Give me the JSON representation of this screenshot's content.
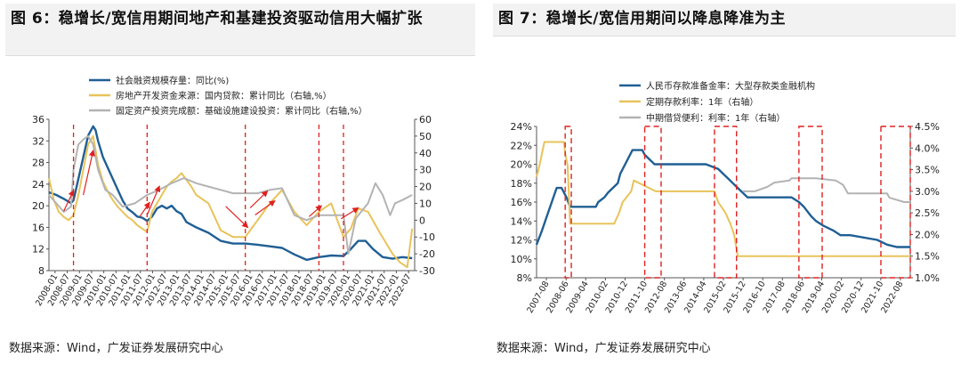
{
  "left_title": "图 6：稳增长/宽信用期间地产和基建投资驱动信用大幅扩张",
  "right_title": "图 7：稳增长/宽信用期间以降息降准为主",
  "left_source": "数据来源：Wind，广发证券发展研究中心",
  "right_source": "数据来源：Wind，广发证券发展研究中心",
  "colors": {
    "blue": "#1f5f94",
    "gold": "#e8c35a",
    "gray": "#b3b3b3",
    "red": "#e02020"
  },
  "chart_data": [
    {
      "type": "line",
      "title": "稳增长/宽信用期间地产和基建投资驱动信用大幅扩张",
      "ylim_left": [
        8,
        36
      ],
      "ylim_right": [
        -30,
        60
      ],
      "yticks_left": [
        "36",
        "32",
        "28",
        "24",
        "20",
        "16",
        "12",
        "8"
      ],
      "yticks_right": [
        "60",
        "50",
        "40",
        "30",
        "20",
        "10",
        "0",
        "-10",
        "-20",
        "-30"
      ],
      "x_tick_labels": [
        "2008-01",
        "2008-07",
        "2009-01",
        "2009-07",
        "2010-01",
        "2010-07",
        "2011-01",
        "2011-07",
        "2012-01",
        "2012-07",
        "2013-01",
        "2013-07",
        "2014-01",
        "2014-07",
        "2015-01",
        "2015-07",
        "2016-01",
        "2016-07",
        "2017-01",
        "2017-07",
        "2018-01",
        "2018-07",
        "2019-01",
        "2019-07",
        "2020-01",
        "2020-07",
        "2021-01",
        "2021-07",
        "2022-01",
        "2022-07"
      ],
      "x_range": [
        2008.0,
        2022.9
      ],
      "red_dashed_lines": [
        2009.0,
        2012.0,
        2016.0,
        2019.0,
        2020.0
      ],
      "arrows": [
        [
          2008.6,
          19.0,
          2009.0,
          22.8
        ],
        [
          2009.4,
          22.0,
          2009.8,
          30.2
        ],
        [
          2011.7,
          18.0,
          2012.1,
          20.6
        ],
        [
          2012.0,
          18.3,
          2012.5,
          23.6
        ],
        [
          2015.2,
          19.9,
          2016.1,
          16.0
        ],
        [
          2016.2,
          19.6,
          2016.9,
          22.7
        ],
        [
          2016.4,
          18.3,
          2017.2,
          20.9
        ],
        [
          2018.6,
          18.0,
          2019.1,
          20.0
        ],
        [
          2019.9,
          17.6,
          2020.6,
          19.6
        ]
      ],
      "series": [
        {
          "name": "社会融资规模存量：同比(%)",
          "axis": "left",
          "x": [
            2008.0,
            2008.3,
            2008.6,
            2008.9,
            2009.0,
            2009.2,
            2009.4,
            2009.6,
            2009.8,
            2009.9,
            2010.0,
            2010.2,
            2010.4,
            2010.6,
            2010.8,
            2011.0,
            2011.2,
            2011.4,
            2011.6,
            2011.8,
            2012.0,
            2012.2,
            2012.4,
            2012.6,
            2012.8,
            2013.0,
            2013.2,
            2013.4,
            2013.6,
            2013.8,
            2014.0,
            2014.5,
            2015.0,
            2015.5,
            2016.0,
            2016.5,
            2017.0,
            2017.5,
            2018.0,
            2018.5,
            2019.0,
            2019.5,
            2020.0,
            2020.3,
            2020.6,
            2020.9,
            2021.2,
            2021.6,
            2022.0,
            2022.4,
            2022.8
          ],
          "values": [
            22.5,
            22.0,
            21.3,
            20.5,
            21.0,
            25.0,
            29.0,
            33.0,
            34.7,
            34.0,
            32.0,
            29.0,
            27.0,
            25.0,
            23.0,
            21.0,
            19.5,
            18.8,
            18.0,
            17.8,
            17.2,
            18.0,
            19.5,
            20.0,
            19.5,
            20.0,
            19.0,
            18.5,
            17.0,
            16.5,
            16.0,
            15.0,
            13.5,
            13.0,
            13.0,
            12.8,
            12.5,
            12.2,
            11.0,
            10.0,
            10.5,
            10.8,
            10.7,
            12.0,
            13.5,
            13.5,
            12.0,
            10.5,
            10.2,
            10.5,
            10.3
          ]
        },
        {
          "name": "房地产开发资金来源：国内贷款：累计同比（右轴,%）",
          "axis": "right",
          "x": [
            2008.0,
            2008.2,
            2008.4,
            2008.6,
            2008.8,
            2009.0,
            2009.2,
            2009.4,
            2009.6,
            2009.8,
            2010.0,
            2010.2,
            2010.4,
            2010.6,
            2010.8,
            2011.0,
            2011.2,
            2011.4,
            2011.6,
            2011.8,
            2012.0,
            2012.2,
            2012.4,
            2012.6,
            2012.8,
            2013.0,
            2013.2,
            2013.4,
            2013.6,
            2013.8,
            2014.0,
            2014.5,
            2015.0,
            2015.5,
            2016.0,
            2016.5,
            2017.0,
            2017.5,
            2018.0,
            2018.5,
            2019.0,
            2019.5,
            2020.0,
            2020.3,
            2020.6,
            2021.0,
            2021.5,
            2022.0,
            2022.3,
            2022.6,
            2022.8
          ],
          "values": [
            25.0,
            12.0,
            5.0,
            2.0,
            0.0,
            3.0,
            15.0,
            30.0,
            45.0,
            50.0,
            33.0,
            23.0,
            17.0,
            12.0,
            8.0,
            5.0,
            2.0,
            0.0,
            -3.0,
            -5.0,
            -7.0,
            5.0,
            10.0,
            15.0,
            20.0,
            23.0,
            25.0,
            28.0,
            24.0,
            20.0,
            15.0,
            10.0,
            -6.0,
            -10.0,
            -10.0,
            0.0,
            10.0,
            18.0,
            5.0,
            -3.0,
            5.0,
            10.0,
            -10.0,
            -5.0,
            7.0,
            5.0,
            -8.0,
            -20.0,
            -25.0,
            -28.0,
            -5.0
          ]
        },
        {
          "name": "固定资产投资完成额：基础设施建设投资：累计同比（右轴,%）",
          "axis": "right",
          "x": [
            2008.0,
            2008.3,
            2008.6,
            2008.9,
            2009.0,
            2009.2,
            2009.4,
            2009.6,
            2009.8,
            2010.0,
            2010.3,
            2010.6,
            2011.0,
            2011.5,
            2012.0,
            2012.5,
            2013.0,
            2013.5,
            2014.0,
            2014.5,
            2015.0,
            2015.5,
            2016.0,
            2016.5,
            2017.0,
            2017.5,
            2018.0,
            2018.5,
            2019.0,
            2019.5,
            2020.0,
            2020.2,
            2020.5,
            2021.0,
            2021.3,
            2021.6,
            2021.9,
            2022.1,
            2022.4,
            2022.8
          ],
          "values": [
            15.0,
            10.0,
            5.0,
            8.0,
            30.0,
            45.0,
            48.0,
            50.0,
            45.0,
            30.0,
            18.0,
            15.0,
            8.0,
            10.0,
            15.0,
            18.0,
            22.0,
            25.0,
            22.0,
            20.0,
            18.0,
            16.0,
            16.0,
            16.0,
            18.0,
            19.0,
            3.0,
            0.0,
            3.0,
            3.0,
            3.0,
            -20.0,
            1.0,
            10.0,
            22.0,
            15.0,
            3.0,
            10.0,
            12.0,
            15.0
          ]
        }
      ]
    },
    {
      "type": "line",
      "title": "稳增长/宽信用期间以降息降准为主",
      "ylim_left": [
        8,
        24
      ],
      "ylim_right": [
        1.0,
        4.5
      ],
      "yticks_left": [
        "24%",
        "22%",
        "20%",
        "18%",
        "16%",
        "14%",
        "12%",
        "10%",
        "8%"
      ],
      "yticks_right": [
        "4.5%",
        "4.0%",
        "3.5%",
        "3.0%",
        "2.5%",
        "2.0%",
        "1.5%",
        "1.0%"
      ],
      "x_tick_labels": [
        "2007-08",
        "2008-06",
        "2009-04",
        "2010-02",
        "2010-12",
        "2011-10",
        "2012-08",
        "2013-06",
        "2014-04",
        "2015-02",
        "2015-12",
        "2016-10",
        "2017-08",
        "2018-06",
        "2019-04",
        "2020-02",
        "2020-12",
        "2021-10",
        "2022-08"
      ],
      "x_range": [
        2007.58,
        2022.85
      ],
      "red_dashed_boxes": [
        [
          2008.75,
          2009.0
        ],
        [
          2012.0,
          2012.67
        ],
        [
          2014.85,
          2015.75
        ],
        [
          2018.3,
          2019.25
        ],
        [
          2021.65,
          2022.85
        ]
      ],
      "series": [
        {
          "name": "人民币存款准备金率：大型存款类金融机构",
          "axis": "left",
          "x": [
            2007.58,
            2007.8,
            2008.0,
            2008.2,
            2008.4,
            2008.6,
            2008.8,
            2008.95,
            2009.0,
            2010.0,
            2010.1,
            2010.35,
            2010.5,
            2010.9,
            2011.0,
            2011.2,
            2011.5,
            2011.9,
            2012.0,
            2012.2,
            2012.4,
            2012.6,
            2014.5,
            2015.0,
            2015.2,
            2015.4,
            2015.6,
            2015.8,
            2016.0,
            2016.2,
            2018.0,
            2018.3,
            2018.5,
            2018.8,
            2019.0,
            2019.3,
            2019.7,
            2020.0,
            2020.4,
            2021.5,
            2021.9,
            2022.3,
            2022.85
          ],
          "values": [
            11.5,
            13.0,
            14.5,
            16.0,
            17.5,
            17.5,
            16.5,
            15.5,
            15.5,
            15.5,
            16.0,
            16.5,
            17.0,
            18.0,
            19.0,
            20.0,
            21.5,
            21.5,
            21.0,
            20.5,
            20.0,
            20.0,
            20.0,
            19.5,
            19.0,
            18.5,
            18.0,
            17.5,
            17.0,
            16.5,
            16.5,
            16.0,
            15.5,
            14.5,
            14.0,
            13.5,
            13.0,
            12.5,
            12.5,
            12.0,
            11.5,
            11.25,
            11.25
          ]
        },
        {
          "name": "定期存款利率：1年（右轴）",
          "axis": "right",
          "x": [
            2007.58,
            2007.7,
            2007.9,
            2008.7,
            2008.75,
            2008.85,
            2008.95,
            2010.75,
            2010.95,
            2011.1,
            2011.45,
            2011.55,
            2012.45,
            2012.55,
            2014.85,
            2015.0,
            2015.3,
            2015.5,
            2015.65,
            2015.8,
            2022.85
          ],
          "values": [
            3.33,
            3.6,
            4.14,
            4.14,
            3.87,
            3.6,
            2.25,
            2.25,
            2.5,
            2.75,
            3.0,
            3.25,
            3.0,
            3.0,
            3.0,
            2.75,
            2.5,
            2.25,
            2.0,
            1.5,
            1.5
          ]
        },
        {
          "name": "中期借贷便利：利率：1年（右轴）",
          "axis": "right",
          "x": [
            2016.0,
            2016.5,
            2017.0,
            2017.3,
            2017.9,
            2018.0,
            2019.0,
            2019.8,
            2020.1,
            2020.3,
            2021.9,
            2022.0,
            2022.6,
            2022.85
          ],
          "values": [
            3.0,
            3.0,
            3.1,
            3.2,
            3.25,
            3.3,
            3.3,
            3.25,
            3.15,
            2.95,
            2.95,
            2.85,
            2.75,
            2.75
          ]
        }
      ]
    }
  ]
}
